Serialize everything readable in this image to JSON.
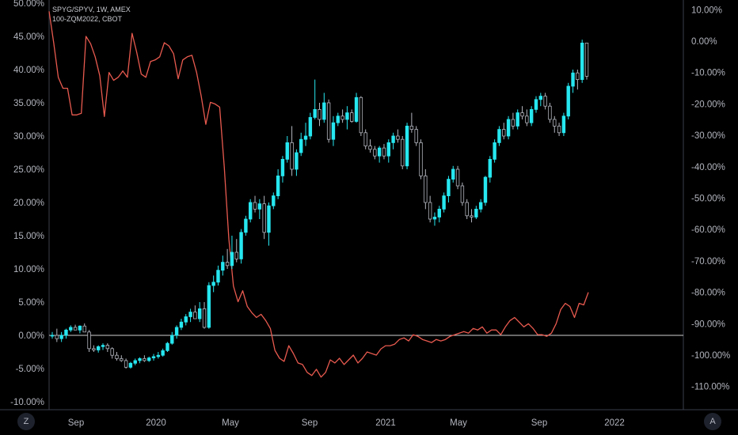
{
  "legend": {
    "line1": "SPYG/SPYV, 1W, AMEX",
    "line2": "100-ZQM2022, CBOT"
  },
  "buttons": {
    "left": "Z",
    "right": "A"
  },
  "colors": {
    "background": "#000000",
    "up_candle": "#26e7f0",
    "down_candle": "#000000",
    "candle_outline": "#b2b5be",
    "line_series": "#e85a4f",
    "zero_line": "#d0d0d0",
    "axis_line": "#3a3e4a"
  },
  "chart_data": {
    "type": "line",
    "title": "",
    "left_axis": {
      "ticks": [
        "50.00%",
        "45.00%",
        "40.00%",
        "35.00%",
        "30.00%",
        "25.00%",
        "20.00%",
        "15.00%",
        "10.00%",
        "5.00%",
        "0.00%",
        "-5.00%",
        "-10.00%"
      ],
      "range": [
        -10.5,
        50
      ]
    },
    "right_axis": {
      "ticks": [
        "10.00%",
        "0.00%",
        "-10.00%",
        "-20.00%",
        "-30.00%",
        "-40.00%",
        "-50.00%",
        "-60.00%",
        "-70.00%",
        "-80.00%",
        "-90.00%",
        "-100.00%",
        "-110.00%"
      ],
      "range": [
        -112,
        10
      ]
    },
    "x_axis": {
      "labels": [
        "Sep",
        "2020",
        "May",
        "Sep",
        "2021",
        "May",
        "Sep",
        "2022"
      ]
    },
    "zero_line": 0,
    "series": [
      {
        "name": "SPYG/SPYV",
        "kind": "candlestick",
        "axis": "left",
        "candles": [
          [
            0.0,
            0.5,
            -0.5,
            0.0
          ],
          [
            0.0,
            1.0,
            -1.0,
            -0.5
          ],
          [
            -0.5,
            0.5,
            -1.0,
            0.0
          ],
          [
            0.0,
            1.0,
            -0.5,
            0.8
          ],
          [
            0.8,
            1.5,
            0.5,
            1.2
          ],
          [
            1.2,
            1.6,
            0.8,
            0.8
          ],
          [
            0.8,
            1.5,
            0.3,
            1.4
          ],
          [
            1.4,
            1.8,
            0.5,
            0.5
          ],
          [
            0.5,
            0.8,
            -2.5,
            -2.0
          ],
          [
            -2.0,
            -1.5,
            -2.5,
            -2.2
          ],
          [
            -2.2,
            -1.5,
            -2.6,
            -1.7
          ],
          [
            -1.7,
            -1.2,
            -2.2,
            -1.5
          ],
          [
            -1.5,
            -1.2,
            -2.5,
            -2.0
          ],
          [
            -2.0,
            -1.8,
            -3.5,
            -3.0
          ],
          [
            -3.0,
            -2.5,
            -3.8,
            -3.5
          ],
          [
            -3.5,
            -3.0,
            -4.0,
            -3.8
          ],
          [
            -3.8,
            -3.5,
            -5.0,
            -4.8
          ],
          [
            -4.8,
            -4.0,
            -5.0,
            -4.2
          ],
          [
            -4.2,
            -3.5,
            -4.5,
            -3.8
          ],
          [
            -3.8,
            -3.3,
            -4.2,
            -3.5
          ],
          [
            -3.5,
            -3.0,
            -4.0,
            -3.8
          ],
          [
            -3.8,
            -3.2,
            -4.0,
            -3.4
          ],
          [
            -3.4,
            -2.8,
            -3.8,
            -3.2
          ],
          [
            -3.2,
            -2.5,
            -3.5,
            -3.0
          ],
          [
            -3.0,
            -2.0,
            -3.2,
            -2.3
          ],
          [
            -2.3,
            -1.0,
            -2.5,
            -1.2
          ],
          [
            -1.2,
            0.5,
            -1.4,
            0.0
          ],
          [
            0.0,
            1.5,
            -0.5,
            1.2
          ],
          [
            1.2,
            2.5,
            0.8,
            2.0
          ],
          [
            2.0,
            3.2,
            1.5,
            2.8
          ],
          [
            2.8,
            4.0,
            2.0,
            3.5
          ],
          [
            3.5,
            4.5,
            3.0,
            2.5
          ],
          [
            2.5,
            5.0,
            2.0,
            4.0
          ],
          [
            4.0,
            5.0,
            1.0,
            1.2
          ],
          [
            1.2,
            8.0,
            1.0,
            7.5
          ],
          [
            7.5,
            9.0,
            6.5,
            8.0
          ],
          [
            8.0,
            10.5,
            7.5,
            9.8
          ],
          [
            9.8,
            12.0,
            9.0,
            11.0
          ],
          [
            11.0,
            13.0,
            10.0,
            10.5
          ],
          [
            10.5,
            15.0,
            10.0,
            12.5
          ],
          [
            12.5,
            14.5,
            11.0,
            11.5
          ],
          [
            11.5,
            16.0,
            10.8,
            15.5
          ],
          [
            15.5,
            18.0,
            15.0,
            17.5
          ],
          [
            17.5,
            20.5,
            17.0,
            20.0
          ],
          [
            20.0,
            21.0,
            18.5,
            19.0
          ],
          [
            19.0,
            20.5,
            17.5,
            19.8
          ],
          [
            19.8,
            21.0,
            14.5,
            15.5
          ],
          [
            15.5,
            20.0,
            13.5,
            19.5
          ],
          [
            19.5,
            21.5,
            19.0,
            21.0
          ],
          [
            21.0,
            25.0,
            20.5,
            24.0
          ],
          [
            24.0,
            27.0,
            23.0,
            26.5
          ],
          [
            26.5,
            30.0,
            26.0,
            29.0
          ],
          [
            29.0,
            31.5,
            24.0,
            25.0
          ],
          [
            25.0,
            28.0,
            24.0,
            27.5
          ],
          [
            27.5,
            30.5,
            27.0,
            29.5
          ],
          [
            29.5,
            32.0,
            28.5,
            30.0
          ],
          [
            30.0,
            33.5,
            29.5,
            32.8
          ],
          [
            32.8,
            38.5,
            32.5,
            34.0
          ],
          [
            34.0,
            35.0,
            31.5,
            32.5
          ],
          [
            32.5,
            36.5,
            32.0,
            35.0
          ],
          [
            35.0,
            35.5,
            29.0,
            29.5
          ],
          [
            29.5,
            33.0,
            28.5,
            32.0
          ],
          [
            32.0,
            33.5,
            31.5,
            33.0
          ],
          [
            33.0,
            34.0,
            32.0,
            32.5
          ],
          [
            32.5,
            34.5,
            31.0,
            33.5
          ],
          [
            33.5,
            34.0,
            32.0,
            32.2
          ],
          [
            32.2,
            36.5,
            32.0,
            35.8
          ],
          [
            35.8,
            36.0,
            30.0,
            30.5
          ],
          [
            30.5,
            31.0,
            28.0,
            28.5
          ],
          [
            28.5,
            29.5,
            27.5,
            28.0
          ],
          [
            28.0,
            28.5,
            26.5,
            27.0
          ],
          [
            27.0,
            28.5,
            26.0,
            28.2
          ],
          [
            28.2,
            28.8,
            26.5,
            27.0
          ],
          [
            27.0,
            29.5,
            26.0,
            29.0
          ],
          [
            29.0,
            30.5,
            28.0,
            30.0
          ],
          [
            30.0,
            31.0,
            29.0,
            29.5
          ],
          [
            29.5,
            30.0,
            25.0,
            25.5
          ],
          [
            25.5,
            32.0,
            25.0,
            31.5
          ],
          [
            31.5,
            33.5,
            30.5,
            31.0
          ],
          [
            31.0,
            31.5,
            28.5,
            29.0
          ],
          [
            29.0,
            29.5,
            23.5,
            24.0
          ],
          [
            24.0,
            25.0,
            19.0,
            20.0
          ],
          [
            20.0,
            21.0,
            17.0,
            17.5
          ],
          [
            17.5,
            18.5,
            16.5,
            17.8
          ],
          [
            17.8,
            19.5,
            17.0,
            19.0
          ],
          [
            19.0,
            21.5,
            18.5,
            21.0
          ],
          [
            21.0,
            24.0,
            20.0,
            23.5
          ],
          [
            23.5,
            25.5,
            23.0,
            25.0
          ],
          [
            25.0,
            25.5,
            22.0,
            22.5
          ],
          [
            22.5,
            23.0,
            19.5,
            20.0
          ],
          [
            20.0,
            20.5,
            17.5,
            18.0
          ],
          [
            18.0,
            19.0,
            17.0,
            17.8
          ],
          [
            17.8,
            19.5,
            17.5,
            19.0
          ],
          [
            19.0,
            20.5,
            18.5,
            20.0
          ],
          [
            20.0,
            24.0,
            19.5,
            23.8
          ],
          [
            23.8,
            27.0,
            23.0,
            26.5
          ],
          [
            26.5,
            29.5,
            26.0,
            29.0
          ],
          [
            29.0,
            31.5,
            28.5,
            31.0
          ],
          [
            31.0,
            32.0,
            29.5,
            30.0
          ],
          [
            30.0,
            33.0,
            29.5,
            32.5
          ],
          [
            32.5,
            33.5,
            31.0,
            31.5
          ],
          [
            31.5,
            34.0,
            31.0,
            33.5
          ],
          [
            33.5,
            34.5,
            32.5,
            33.0
          ],
          [
            33.0,
            34.0,
            31.5,
            32.0
          ],
          [
            32.0,
            34.5,
            31.5,
            34.0
          ],
          [
            34.0,
            36.0,
            33.5,
            35.5
          ],
          [
            35.5,
            36.5,
            34.5,
            36.0
          ],
          [
            36.0,
            36.5,
            34.0,
            34.5
          ],
          [
            34.5,
            35.0,
            32.0,
            32.5
          ],
          [
            32.5,
            33.0,
            30.5,
            31.5
          ],
          [
            31.5,
            32.0,
            30.0,
            30.5
          ],
          [
            30.5,
            33.5,
            30.0,
            33.0
          ],
          [
            33.0,
            38.0,
            32.5,
            37.5
          ],
          [
            37.5,
            40.0,
            36.5,
            39.5
          ],
          [
            39.5,
            40.0,
            37.0,
            38.5
          ],
          [
            38.5,
            44.5,
            38.0,
            44.0
          ],
          [
            44.0,
            44.0,
            38.5,
            39.0
          ]
        ]
      },
      {
        "name": "100-ZQM2022",
        "kind": "line",
        "axis": "right",
        "values": [
          9.5,
          -0.5,
          -11.5,
          -15.0,
          -15.0,
          -23.5,
          -23.5,
          -23.0,
          1.5,
          -0.8,
          -5.0,
          -11.0,
          -24.0,
          -10.0,
          -12.5,
          -11.5,
          -9.5,
          -11.5,
          2.5,
          -3.5,
          -10.5,
          -11.5,
          -6.5,
          -6.0,
          -5.0,
          -0.5,
          -1.5,
          -4.0,
          -12.0,
          -6.0,
          -5.0,
          -4.5,
          -10.0,
          -17.5,
          -26.5,
          -19.5,
          -20.0,
          -21.0,
          -40.0,
          -63.0,
          -78.0,
          -83.0,
          -79.5,
          -84.5,
          -86.5,
          -88.0,
          -87.0,
          -89.0,
          -91.5,
          -98.5,
          -101.0,
          -102.0,
          -97.0,
          -99.5,
          -102.5,
          -103.0,
          -105.5,
          -106.5,
          -104.5,
          -107.0,
          -105.5,
          -101.5,
          -102.5,
          -101.0,
          -103.0,
          -101.5,
          -100.0,
          -102.5,
          -101.0,
          -99.0,
          -99.5,
          -100.0,
          -98.0,
          -97.0,
          -97.0,
          -96.5,
          -95.0,
          -94.5,
          -95.5,
          -93.5,
          -94.0,
          -95.0,
          -95.5,
          -96.0,
          -95.0,
          -95.5,
          -95.0,
          -94.0,
          -93.5,
          -93.0,
          -92.5,
          -93.0,
          -91.5,
          -92.0,
          -91.0,
          -93.0,
          -92.0,
          -92.0,
          -93.5,
          -91.0,
          -89.0,
          -88.0,
          -89.5,
          -91.0,
          -90.0,
          -91.5,
          -93.5,
          -93.5,
          -94.0,
          -93.0,
          -90.0,
          -85.5,
          -83.5,
          -84.5,
          -88.0,
          -83.5,
          -84.0,
          -80.0
        ]
      }
    ]
  }
}
